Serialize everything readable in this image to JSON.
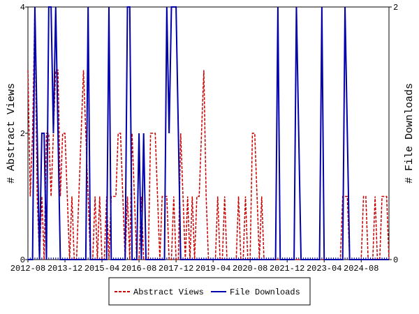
{
  "chart_data": {
    "type": "line",
    "categories": [
      "2012-08",
      null,
      null,
      null,
      null,
      null,
      null,
      null,
      null,
      null,
      null,
      null,
      null,
      null,
      null,
      null,
      "2013-12",
      null,
      null,
      null,
      null,
      null,
      null,
      null,
      null,
      null,
      null,
      null,
      null,
      null,
      null,
      null,
      "2015-04",
      null,
      null,
      null,
      null,
      null,
      null,
      null,
      null,
      null,
      null,
      null,
      null,
      null,
      null,
      null,
      "2016-08",
      null,
      null,
      null,
      null,
      null,
      null,
      null,
      null,
      null,
      null,
      null,
      null,
      null,
      null,
      null,
      "2017-12",
      null,
      null,
      null,
      null,
      null,
      null,
      null,
      null,
      null,
      null,
      null,
      null,
      null,
      null,
      null,
      "2019-04",
      null,
      null,
      null,
      null,
      null,
      null,
      null,
      null,
      null,
      null,
      null,
      null,
      null,
      null,
      null,
      "2020-08",
      null,
      null,
      null,
      null,
      null,
      null,
      null,
      null,
      null,
      null,
      null,
      null,
      null,
      null,
      null,
      "2021-12",
      null,
      null,
      null,
      null,
      null,
      null,
      null,
      null,
      null,
      null,
      null,
      null,
      null,
      null,
      null,
      "2023-04",
      null,
      null,
      null,
      null,
      null,
      null,
      null,
      null,
      null,
      null,
      null,
      null,
      null,
      null,
      null,
      "2024-08",
      null,
      null,
      null,
      null,
      null,
      null,
      null,
      null,
      null,
      null,
      null,
      null
    ],
    "ylabel": "# Abstract Views",
    "y2label": "# File Downloads",
    "ylim": [
      0,
      4
    ],
    "yticks": [
      0,
      2,
      4
    ],
    "y2lim": [
      0,
      2
    ],
    "y2ticks": [
      0,
      2
    ],
    "series": [
      {
        "name": "Abstract Views",
        "color": "#cc0000",
        "dash": true,
        "values": [
          3,
          1,
          2,
          4,
          1,
          0,
          1,
          0,
          2,
          2,
          1,
          2,
          3,
          3,
          1,
          2,
          2,
          1,
          0,
          1,
          0,
          0,
          1,
          2,
          3,
          2,
          1,
          0,
          0,
          1,
          0,
          1,
          0,
          0,
          1,
          0,
          1,
          1,
          1,
          2,
          2,
          1,
          0,
          1,
          0,
          2,
          1,
          0,
          0,
          1,
          0,
          0,
          0,
          2,
          2,
          2,
          1,
          0,
          1,
          1,
          1,
          0,
          0,
          1,
          0,
          0,
          2,
          1,
          0,
          1,
          0,
          1,
          0,
          1,
          1,
          2,
          3,
          1,
          0,
          0,
          0,
          0,
          1,
          0,
          0,
          1,
          0,
          0,
          0,
          0,
          0,
          1,
          0,
          0,
          1,
          0,
          0,
          2,
          2,
          1,
          0,
          1,
          0,
          0,
          0,
          0,
          0,
          0,
          0,
          0,
          0,
          0,
          0,
          0,
          0,
          0,
          0,
          0,
          0,
          0,
          0,
          0,
          0,
          0,
          0,
          0,
          0,
          0,
          0,
          0,
          0,
          0,
          0,
          0,
          0,
          0,
          1,
          1,
          1,
          0,
          0,
          0,
          0,
          0,
          0,
          1,
          1,
          0,
          0,
          0,
          1,
          0,
          0,
          1,
          1,
          1,
          0
        ]
      },
      {
        "name": "File Downloads",
        "color": "#0000aa",
        "axis": "y2",
        "values": [
          0,
          0,
          0,
          2,
          1,
          0,
          1,
          1,
          0,
          2,
          2,
          1,
          2,
          1,
          0,
          0,
          0,
          0,
          0,
          0,
          0,
          0,
          0,
          0,
          0,
          0,
          2,
          0,
          0,
          0,
          0,
          0,
          0,
          0,
          0,
          2,
          0,
          0,
          0,
          0,
          0,
          0,
          0,
          2,
          2,
          0,
          0,
          0,
          1,
          0,
          1,
          0,
          0,
          0,
          0,
          0,
          0,
          0,
          0,
          0,
          2,
          1,
          2,
          2,
          2,
          1,
          0,
          0,
          0,
          0,
          0,
          0,
          0,
          0,
          0,
          0,
          0,
          0,
          0,
          0,
          0,
          0,
          0,
          0,
          0,
          0,
          0,
          0,
          0,
          0,
          0,
          0,
          0,
          0,
          0,
          0,
          0,
          0,
          0,
          0,
          0,
          0,
          0,
          0,
          0,
          0,
          0,
          0,
          2,
          0,
          0,
          0,
          0,
          0,
          0,
          0,
          2,
          1,
          0,
          0,
          0,
          0,
          0,
          0,
          0,
          0,
          0,
          2,
          0,
          0,
          0,
          0,
          0,
          0,
          0,
          0,
          0,
          2,
          1,
          0,
          0,
          0,
          0,
          0,
          0,
          0,
          0,
          0,
          0,
          0,
          0,
          0,
          0,
          0,
          0,
          0,
          0
        ]
      }
    ]
  }
}
